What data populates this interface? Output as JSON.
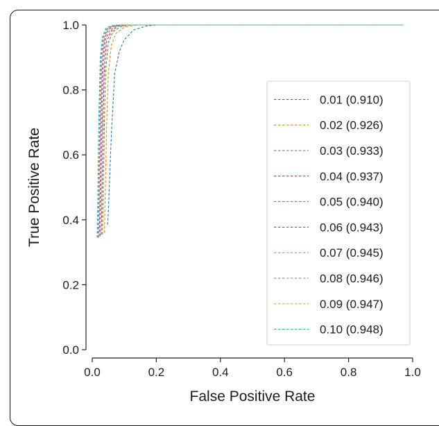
{
  "chart_data": {
    "type": "line",
    "xlabel": "False Positive Rate",
    "ylabel": "True Positive Rate",
    "xlim": [
      0.0,
      1.0
    ],
    "ylim": [
      0.0,
      1.0
    ],
    "xticks": [
      "0.0",
      "0.2",
      "0.4",
      "0.6",
      "0.8",
      "1.0"
    ],
    "yticks": [
      "0.0",
      "0.2",
      "0.4",
      "0.6",
      "0.8",
      "1.0"
    ],
    "grid": false,
    "legend_position": "center-right",
    "line_style": "dashed",
    "series": [
      {
        "name": "0.01 (0.910)",
        "color": "#1f77b4",
        "x": [
          0.048,
          0.05,
          0.06,
          0.07,
          0.085,
          0.1,
          0.13,
          0.17,
          0.2,
          0.5,
          0.97
        ],
        "y": [
          0.385,
          0.42,
          0.67,
          0.85,
          0.92,
          0.955,
          0.985,
          0.997,
          1.0,
          1.0,
          1.0
        ]
      },
      {
        "name": "0.02 (0.926)",
        "color": "#ff7f0e",
        "x": [
          0.038,
          0.04,
          0.045,
          0.05,
          0.06,
          0.075,
          0.1,
          0.14,
          0.97
        ],
        "y": [
          0.36,
          0.45,
          0.7,
          0.85,
          0.94,
          0.975,
          0.993,
          1.0,
          1.0
        ]
      },
      {
        "name": "0.03 (0.933)",
        "color": "#2ca02c",
        "x": [
          0.032,
          0.034,
          0.038,
          0.042,
          0.05,
          0.065,
          0.09,
          0.12,
          0.97
        ],
        "y": [
          0.355,
          0.45,
          0.7,
          0.86,
          0.945,
          0.98,
          0.995,
          1.0,
          1.0
        ]
      },
      {
        "name": "0.04 (0.937)",
        "color": "#d62728",
        "x": [
          0.028,
          0.03,
          0.034,
          0.038,
          0.045,
          0.06,
          0.08,
          0.11,
          0.97
        ],
        "y": [
          0.355,
          0.45,
          0.72,
          0.87,
          0.95,
          0.982,
          0.996,
          1.0,
          1.0
        ]
      },
      {
        "name": "0.05 (0.940)",
        "color": "#9467bd",
        "x": [
          0.025,
          0.027,
          0.031,
          0.035,
          0.042,
          0.055,
          0.075,
          0.1,
          0.97
        ],
        "y": [
          0.35,
          0.45,
          0.72,
          0.88,
          0.955,
          0.984,
          0.996,
          1.0,
          1.0
        ]
      },
      {
        "name": "0.06 (0.943)",
        "color": "#8c564b",
        "x": [
          0.022,
          0.024,
          0.028,
          0.032,
          0.039,
          0.05,
          0.07,
          0.095,
          0.97
        ],
        "y": [
          0.35,
          0.45,
          0.73,
          0.885,
          0.958,
          0.986,
          0.997,
          1.0,
          1.0
        ]
      },
      {
        "name": "0.07 (0.945)",
        "color": "#e377c2",
        "x": [
          0.02,
          0.022,
          0.026,
          0.03,
          0.037,
          0.048,
          0.065,
          0.09,
          0.97
        ],
        "y": [
          0.345,
          0.45,
          0.73,
          0.89,
          0.96,
          0.987,
          0.997,
          1.0,
          1.0
        ]
      },
      {
        "name": "0.08 (0.946)",
        "color": "#7f7f7f",
        "x": [
          0.018,
          0.02,
          0.024,
          0.028,
          0.035,
          0.046,
          0.062,
          0.085,
          0.97
        ],
        "y": [
          0.345,
          0.45,
          0.74,
          0.895,
          0.962,
          0.988,
          0.997,
          1.0,
          1.0
        ]
      },
      {
        "name": "0.09 (0.947)",
        "color": "#bcbd22",
        "x": [
          0.016,
          0.018,
          0.022,
          0.026,
          0.033,
          0.044,
          0.06,
          0.08,
          0.97
        ],
        "y": [
          0.345,
          0.45,
          0.74,
          0.9,
          0.964,
          0.989,
          0.998,
          1.0,
          1.0
        ]
      },
      {
        "name": "0.10 (0.948)",
        "color": "#17becf",
        "x": [
          0.015,
          0.017,
          0.021,
          0.025,
          0.032,
          0.043,
          0.058,
          0.078,
          0.97
        ],
        "y": [
          0.345,
          0.45,
          0.74,
          0.9,
          0.965,
          0.99,
          0.998,
          1.0,
          1.0
        ]
      }
    ]
  }
}
